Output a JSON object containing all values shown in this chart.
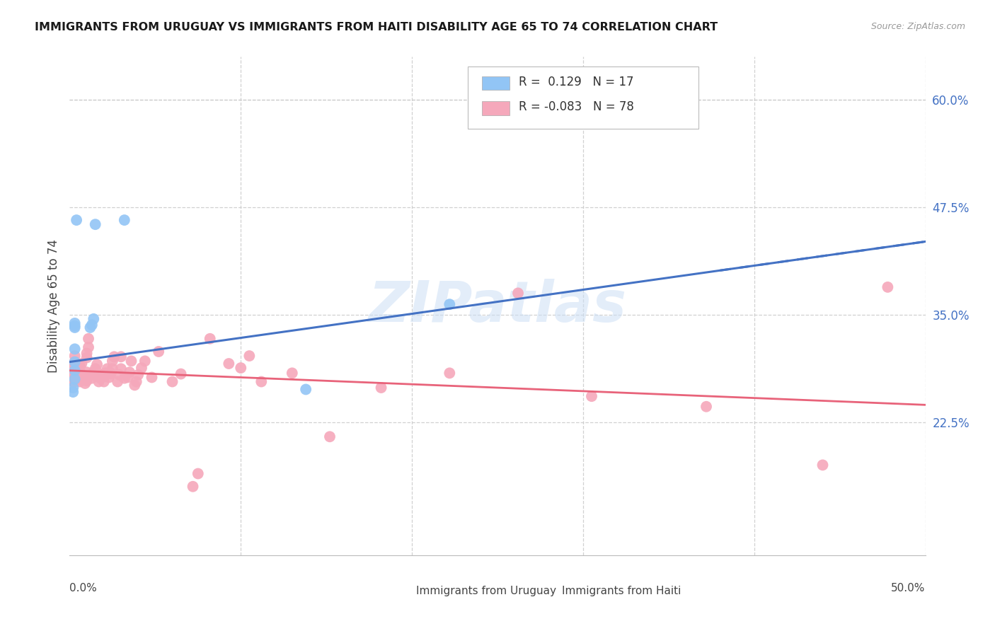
{
  "title": "IMMIGRANTS FROM URUGUAY VS IMMIGRANTS FROM HAITI DISABILITY AGE 65 TO 74 CORRELATION CHART",
  "source": "Source: ZipAtlas.com",
  "ylabel": "Disability Age 65 to 74",
  "watermark": "ZIPatlas",
  "legend1_r": "0.129",
  "legend1_n": "17",
  "legend2_r": "-0.083",
  "legend2_n": "78",
  "uruguay_color": "#92c5f5",
  "haiti_color": "#f5a8bb",
  "uruguay_line_color": "#4472c4",
  "haiti_line_color": "#e8637a",
  "xlim": [
    0.0,
    0.5
  ],
  "ylim": [
    0.07,
    0.65
  ],
  "xticks": [
    0.0,
    0.1,
    0.2,
    0.3,
    0.4,
    0.5
  ],
  "right_ytick_positions": [
    0.225,
    0.35,
    0.475,
    0.6
  ],
  "right_ytick_labels": [
    "22.5%",
    "35.0%",
    "47.5%",
    "60.0%"
  ],
  "grid_yticks": [
    0.225,
    0.35,
    0.475,
    0.6
  ],
  "grid_color": "#cccccc",
  "background_color": "#ffffff",
  "uruguay_line": {
    "x0": 0.0,
    "y0": 0.295,
    "x1": 0.5,
    "y1": 0.435
  },
  "haiti_line": {
    "x0": 0.0,
    "y0": 0.285,
    "x1": 0.5,
    "y1": 0.245
  },
  "uruguay_scatter_x": [
    0.002,
    0.002,
    0.003,
    0.003,
    0.003,
    0.003,
    0.003,
    0.003,
    0.003,
    0.004,
    0.012,
    0.013,
    0.014,
    0.015,
    0.032,
    0.138,
    0.222
  ],
  "uruguay_scatter_y": [
    0.265,
    0.26,
    0.275,
    0.285,
    0.295,
    0.31,
    0.335,
    0.337,
    0.34,
    0.46,
    0.335,
    0.338,
    0.345,
    0.455,
    0.46,
    0.263,
    0.362
  ],
  "haiti_scatter_x": [
    0.001,
    0.001,
    0.002,
    0.002,
    0.002,
    0.002,
    0.003,
    0.003,
    0.003,
    0.003,
    0.003,
    0.003,
    0.006,
    0.006,
    0.006,
    0.006,
    0.007,
    0.009,
    0.009,
    0.009,
    0.01,
    0.01,
    0.01,
    0.01,
    0.01,
    0.011,
    0.011,
    0.013,
    0.014,
    0.014,
    0.015,
    0.016,
    0.017,
    0.018,
    0.019,
    0.02,
    0.02,
    0.021,
    0.022,
    0.023,
    0.024,
    0.024,
    0.025,
    0.025,
    0.026,
    0.028,
    0.029,
    0.03,
    0.03,
    0.032,
    0.034,
    0.035,
    0.036,
    0.038,
    0.039,
    0.04,
    0.042,
    0.044,
    0.048,
    0.052,
    0.06,
    0.065,
    0.072,
    0.075,
    0.082,
    0.093,
    0.1,
    0.105,
    0.112,
    0.13,
    0.152,
    0.182,
    0.222,
    0.262,
    0.305,
    0.372,
    0.44,
    0.478
  ],
  "haiti_scatter_y": [
    0.275,
    0.28,
    0.272,
    0.277,
    0.283,
    0.288,
    0.272,
    0.277,
    0.283,
    0.29,
    0.295,
    0.302,
    0.272,
    0.278,
    0.283,
    0.29,
    0.293,
    0.27,
    0.275,
    0.278,
    0.273,
    0.278,
    0.283,
    0.3,
    0.305,
    0.312,
    0.322,
    0.276,
    0.28,
    0.283,
    0.287,
    0.292,
    0.272,
    0.276,
    0.281,
    0.272,
    0.278,
    0.282,
    0.287,
    0.277,
    0.281,
    0.282,
    0.287,
    0.296,
    0.301,
    0.272,
    0.28,
    0.287,
    0.301,
    0.276,
    0.277,
    0.283,
    0.296,
    0.268,
    0.272,
    0.28,
    0.288,
    0.296,
    0.277,
    0.307,
    0.272,
    0.281,
    0.15,
    0.165,
    0.322,
    0.293,
    0.288,
    0.302,
    0.272,
    0.282,
    0.208,
    0.265,
    0.282,
    0.375,
    0.255,
    0.243,
    0.175,
    0.382
  ]
}
